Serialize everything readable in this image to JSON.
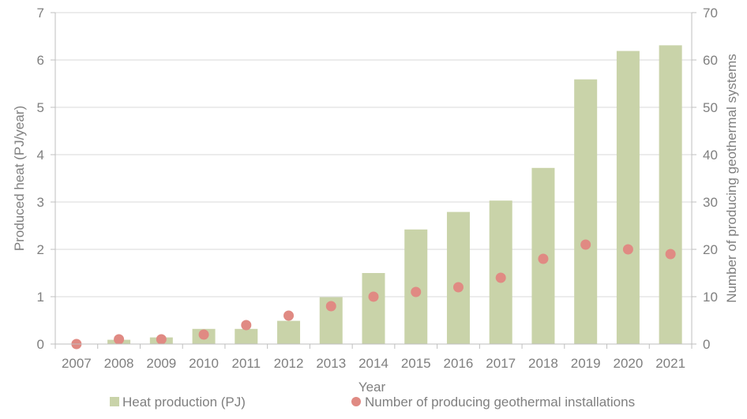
{
  "chart_data": {
    "type": "bar",
    "xlabel": "Year",
    "ylabel": "Produced heat (PJ/year)",
    "y2label": "Number of producing geothermal systems",
    "categories": [
      "2007",
      "2008",
      "2009",
      "2010",
      "2011",
      "2012",
      "2013",
      "2014",
      "2015",
      "2016",
      "2017",
      "2018",
      "2019",
      "2020",
      "2021"
    ],
    "ylim": [
      0,
      7
    ],
    "y2lim": [
      0,
      70
    ],
    "yticks": [
      "0",
      "1",
      "2",
      "3",
      "4",
      "5",
      "6",
      "7"
    ],
    "y2ticks": [
      "0",
      "10",
      "20",
      "30",
      "40",
      "50",
      "60",
      "70"
    ],
    "grid": "horizontal",
    "legend_position": "bottom",
    "series": [
      {
        "name": "Heat production (PJ)",
        "type": "bar",
        "axis": "left",
        "color": "#c9d3a9",
        "values": [
          0,
          0.09,
          0.14,
          0.32,
          0.32,
          0.49,
          0.99,
          1.5,
          2.42,
          2.79,
          3.03,
          3.72,
          5.59,
          6.19,
          6.31
        ]
      },
      {
        "name": "Number of producing geothermal installations",
        "type": "scatter",
        "axis": "right",
        "color": "#e08a83",
        "values": [
          0,
          1,
          1,
          2,
          4,
          6,
          8,
          10,
          11,
          12,
          14,
          18,
          21,
          20,
          19
        ]
      }
    ]
  }
}
